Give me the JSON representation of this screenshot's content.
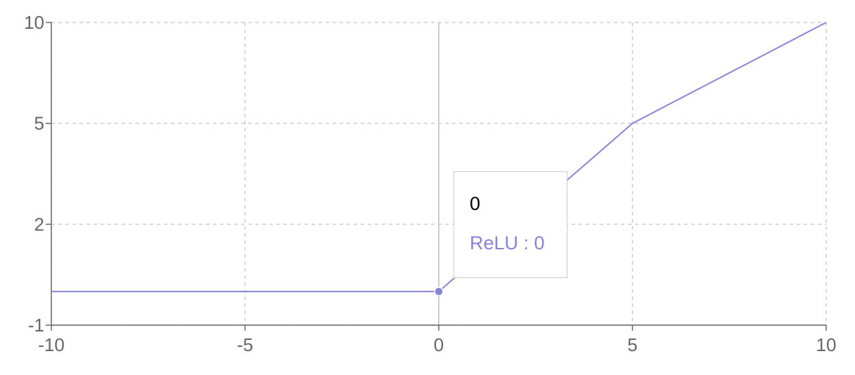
{
  "chart_data": {
    "type": "line",
    "x": [
      -10,
      -9,
      -8,
      -7,
      -6,
      -5,
      -4,
      -3,
      -2,
      -1,
      0,
      1,
      2,
      3,
      4,
      5,
      6,
      7,
      8,
      9,
      10
    ],
    "series": [
      {
        "name": "ReLU",
        "values": [
          0,
          0,
          0,
          0,
          0,
          0,
          0,
          0,
          0,
          0,
          0,
          1,
          2,
          3,
          4,
          5,
          6,
          7,
          8,
          9,
          10
        ],
        "color": "#8884d8"
      }
    ],
    "xticks": [
      "-10",
      "-5",
      "0",
      "5",
      "10"
    ],
    "yticks": [
      "-1",
      "2",
      "5",
      "10"
    ],
    "xlim": [
      -10,
      10
    ],
    "ylim": [
      -1,
      10
    ],
    "grid": true,
    "active_point": {
      "x": 0,
      "y": 0
    }
  },
  "tooltip": {
    "label": "0",
    "item": "ReLU : 0"
  }
}
